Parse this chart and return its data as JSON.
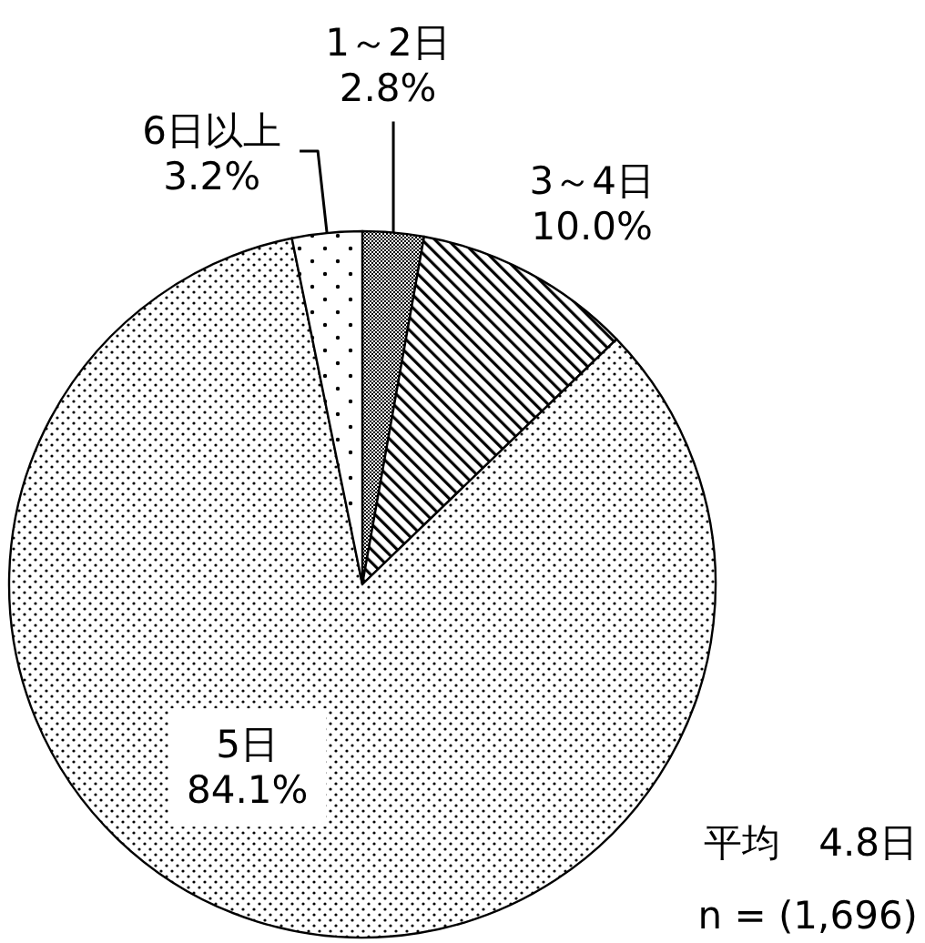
{
  "chart_data": {
    "type": "pie",
    "categories": [
      "1～2日",
      "3～4日",
      "5日",
      "6日以上"
    ],
    "values": [
      2.8,
      10.0,
      84.1,
      3.2
    ],
    "value_labels": [
      "2.8%",
      "10.0%",
      "84.1%",
      "3.2%"
    ],
    "colors": [
      "#000000",
      "#000000",
      "#000000",
      "#000000"
    ],
    "annotations": [
      "平均　4.8日",
      "n = (1,696)"
    ]
  }
}
